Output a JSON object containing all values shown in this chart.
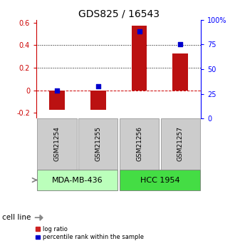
{
  "title": "GDS825 / 16543",
  "samples": [
    "GSM21254",
    "GSM21255",
    "GSM21256",
    "GSM21257"
  ],
  "log_ratios": [
    -0.175,
    -0.175,
    0.575,
    0.325
  ],
  "percentile_ranks_pct": [
    28,
    33,
    88,
    75
  ],
  "cell_lines": [
    {
      "label": "MDA-MB-436",
      "samples": [
        0,
        1
      ],
      "color": "#bbffbb"
    },
    {
      "label": "HCC 1954",
      "samples": [
        2,
        3
      ],
      "color": "#44dd44"
    }
  ],
  "ylim_left": [
    -0.25,
    0.625
  ],
  "ylim_right": [
    0,
    100
  ],
  "yticks_left": [
    -0.2,
    0.0,
    0.2,
    0.4,
    0.6
  ],
  "ytick_labels_left": [
    "-0.2",
    "0",
    "0.2",
    "0.4",
    "0.6"
  ],
  "yticks_right": [
    0,
    25,
    50,
    75,
    100
  ],
  "ytick_labels_right": [
    "0",
    "25",
    "50",
    "75",
    "100%"
  ],
  "bar_color": "#bb1111",
  "dot_color": "#0000cc",
  "bar_color_legend": "#cc2222",
  "zero_line_color": "#cc0000",
  "background_color": "#ffffff",
  "cell_line_label": "cell line",
  "legend_bar_label": "log ratio",
  "legend_dot_label": "percentile rank within the sample",
  "title_fontsize": 10,
  "tick_fontsize": 7,
  "label_fontsize": 7.5,
  "sample_label_fontsize": 6.5,
  "cell_line_fontsize": 8
}
